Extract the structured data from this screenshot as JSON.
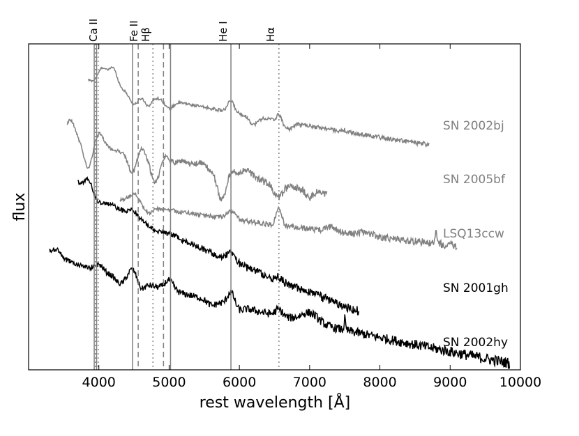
{
  "chart_data": {
    "type": "line",
    "title": "",
    "xlabel": "rest wavelength [Å]",
    "ylabel": "flux",
    "xlim": [
      3000,
      10000
    ],
    "ylim": [
      0,
      10
    ],
    "x_ticks": [
      4000,
      5000,
      6000,
      7000,
      8000,
      9000,
      10000
    ],
    "grid": false,
    "line_identifications": [
      {
        "label": "Ca II",
        "style": "solid",
        "wavelengths": [
          3934,
          3968
        ],
        "dotted": [
          3950,
          3990
        ]
      },
      {
        "label": "Fe II",
        "style": "solid",
        "wavelengths": [
          4480
        ],
        "dashed": [
          4560,
          4920
        ],
        "solid_extra": [
          5020
        ]
      },
      {
        "label": "Hβ",
        "style": "dotted",
        "wavelengths": [
          4770
        ]
      },
      {
        "label": "He I",
        "style": "solid",
        "wavelengths": [
          5880
        ]
      },
      {
        "label": "Hα",
        "style": "dotted",
        "wavelengths": [
          6563
        ]
      }
    ],
    "series": [
      {
        "name": "SN 2002bj",
        "color": "#808080",
        "xmin": 3850,
        "xmax": 8700,
        "start": 8.9,
        "end": 6.9,
        "features": [
          [
            4050,
            0.5,
            60
          ],
          [
            4200,
            0.6,
            60
          ],
          [
            4500,
            -0.35,
            60
          ],
          [
            4700,
            -0.3,
            50
          ],
          [
            5000,
            -0.25,
            60
          ],
          [
            5880,
            0.35,
            45
          ],
          [
            6200,
            -0.25,
            60
          ],
          [
            6563,
            0.2,
            30
          ],
          [
            6700,
            -0.2,
            60
          ],
          [
            7500,
            0.05,
            10
          ]
        ],
        "noise": 0.03
      },
      {
        "name": "SN 2005bf",
        "color": "#808080",
        "xmin": 3550,
        "xmax": 7250,
        "start": 7.2,
        "end": 5.4,
        "features": [
          [
            3600,
            0.5,
            60
          ],
          [
            3850,
            -0.8,
            60
          ],
          [
            4000,
            0.4,
            70
          ],
          [
            4480,
            -0.6,
            60
          ],
          [
            4600,
            0.3,
            60
          ],
          [
            4800,
            -0.7,
            60
          ],
          [
            4950,
            0.2,
            50
          ],
          [
            5200,
            0.15,
            80
          ],
          [
            5450,
            0.2,
            80
          ],
          [
            5750,
            -0.8,
            60
          ],
          [
            5880,
            0.15,
            40
          ],
          [
            6100,
            0.25,
            100
          ],
          [
            6550,
            -0.4,
            60
          ],
          [
            7000,
            -0.2,
            50
          ]
        ],
        "noise": 0.05
      },
      {
        "name": "LSQ13ccw",
        "color": "#808080",
        "xmin": 4300,
        "xmax": 9100,
        "start": 5.2,
        "end": 3.8,
        "features": [
          [
            4500,
            0.3,
            80
          ],
          [
            4700,
            -0.2,
            60
          ],
          [
            5880,
            0.25,
            60
          ],
          [
            6563,
            0.5,
            40
          ],
          [
            7300,
            0.15,
            80
          ],
          [
            7800,
            0.1,
            100
          ],
          [
            8800,
            0.4,
            10
          ]
        ],
        "noise": 0.05
      },
      {
        "name": "SN 2001gh",
        "color": "#000000",
        "xmin": 3700,
        "xmax": 7700,
        "start": 5.8,
        "end": 1.8,
        "features": [
          [
            3850,
            0.35,
            50
          ],
          [
            4000,
            -0.15,
            60
          ],
          [
            4480,
            0.2,
            60
          ],
          [
            4800,
            -0.1,
            60
          ],
          [
            5880,
            0.25,
            60
          ],
          [
            6563,
            0.1,
            40
          ]
        ],
        "noise": 0.06
      },
      {
        "name": "SN 2002hy",
        "color": "#000000",
        "xmin": 3300,
        "xmax": 9850,
        "start": 3.6,
        "end": 0.2,
        "features": [
          [
            3400,
            0.2,
            60
          ],
          [
            4000,
            0.2,
            60
          ],
          [
            4300,
            -0.2,
            60
          ],
          [
            4480,
            0.35,
            60
          ],
          [
            4600,
            -0.2,
            50
          ],
          [
            5000,
            0.3,
            60
          ],
          [
            5600,
            -0.15,
            60
          ],
          [
            5880,
            0.4,
            50
          ],
          [
            6000,
            -0.1,
            50
          ],
          [
            6563,
            0.2,
            50
          ],
          [
            7000,
            0.3,
            120
          ],
          [
            7500,
            0.35,
            10
          ]
        ],
        "noise": 0.07
      }
    ]
  },
  "labels": {
    "ca2": "Ca II",
    "fe2": "Fe II",
    "hbeta": "Hβ",
    "he1": "He I",
    "halpha": "Hα",
    "sn2002bj": "SN 2002bj",
    "sn2005bf": "SN 2005bf",
    "lsq13ccw": "LSQ13ccw",
    "sn2001gh": "SN 2001gh",
    "sn2002hy": "SN 2002hy"
  }
}
